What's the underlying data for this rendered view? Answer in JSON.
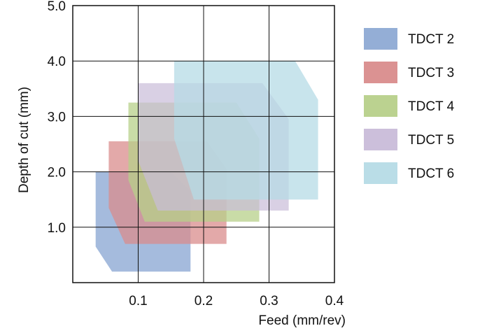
{
  "chart_data": {
    "type": "area",
    "xlabel": "Feed (mm/rev)",
    "ylabel": "Depth of cut (mm)",
    "xlim": [
      0.0,
      0.4
    ],
    "ylim": [
      0.0,
      5.0
    ],
    "x_ticks": [
      {
        "value": 0.1,
        "label": "0.1"
      },
      {
        "value": 0.2,
        "label": "0.2"
      },
      {
        "value": 0.3,
        "label": "0.3"
      },
      {
        "value": 0.4,
        "label": "0.4"
      }
    ],
    "y_ticks": [
      {
        "value": 1.0,
        "label": "1.0"
      },
      {
        "value": 2.0,
        "label": "2.0"
      },
      {
        "value": 3.0,
        "label": "3.0"
      },
      {
        "value": 4.0,
        "label": "4.0"
      },
      {
        "value": 5.0,
        "label": "5.0"
      }
    ],
    "grid": true,
    "legend_position": "right",
    "series": [
      {
        "name": "TDCT 2",
        "color": "#8eaad4",
        "opacity": 0.8,
        "polygon": [
          [
            0.035,
            2.0
          ],
          [
            0.15,
            2.0
          ],
          [
            0.18,
            1.65
          ],
          [
            0.18,
            0.2
          ],
          [
            0.06,
            0.2
          ],
          [
            0.035,
            0.65
          ]
        ]
      },
      {
        "name": "TDCT 3",
        "color": "#d98c8c",
        "opacity": 0.75,
        "polygon": [
          [
            0.055,
            2.55
          ],
          [
            0.205,
            2.55
          ],
          [
            0.235,
            2.05
          ],
          [
            0.235,
            0.7
          ],
          [
            0.08,
            0.7
          ],
          [
            0.055,
            1.35
          ]
        ]
      },
      {
        "name": "TDCT 4",
        "color": "#b7d08a",
        "opacity": 0.75,
        "polygon": [
          [
            0.085,
            3.25
          ],
          [
            0.25,
            3.25
          ],
          [
            0.285,
            2.6
          ],
          [
            0.285,
            1.1
          ],
          [
            0.11,
            1.1
          ],
          [
            0.085,
            1.85
          ]
        ]
      },
      {
        "name": "TDCT 5",
        "color": "#c9bcd9",
        "opacity": 0.7,
        "polygon": [
          [
            0.1,
            3.6
          ],
          [
            0.29,
            3.6
          ],
          [
            0.33,
            2.95
          ],
          [
            0.33,
            1.3
          ],
          [
            0.13,
            1.3
          ],
          [
            0.1,
            2.2
          ]
        ]
      },
      {
        "name": "TDCT 6",
        "color": "#b6dbe6",
        "opacity": 0.75,
        "polygon": [
          [
            0.155,
            4.0
          ],
          [
            0.34,
            4.0
          ],
          [
            0.375,
            3.3
          ],
          [
            0.375,
            1.5
          ],
          [
            0.185,
            1.5
          ],
          [
            0.155,
            2.6
          ]
        ]
      }
    ]
  }
}
